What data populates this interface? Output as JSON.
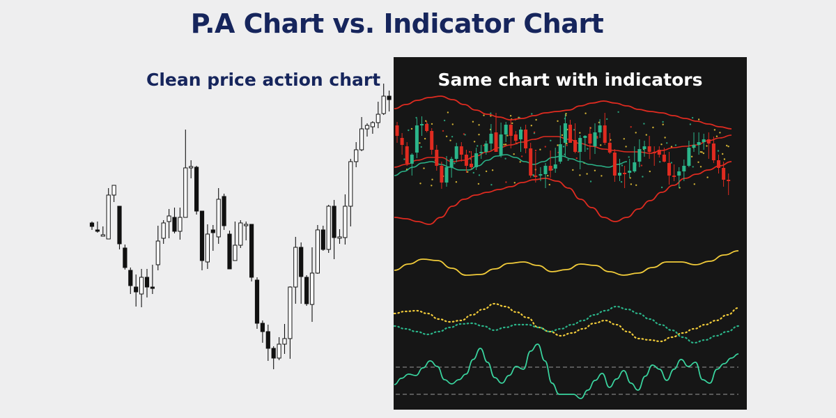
{
  "title": "P.A Chart vs. Indicator Chart",
  "left_panel": {
    "label": "Clean price action chart"
  },
  "right_panel": {
    "label": "Same chart with indicators"
  },
  "colors": {
    "background": "#eeeeef",
    "title": "#16255c",
    "dark_panel": "#161616",
    "bull_candle": "#2bb58a",
    "bear_candle": "#e02b20",
    "bollinger_band": "#e02b20",
    "moving_average": "#2bb58a",
    "indicator_line": "#f2cc3a",
    "dotted_yellow": "#f2cc3a",
    "dotted_green": "#2bb58a",
    "oscillator": "#3ad6a0",
    "dashed_level": "#bbbbbb"
  },
  "chart_data": {
    "type": "candlestick",
    "axes_visible": false,
    "price_ohlc": [
      [
        320,
        325,
        330,
        318
      ],
      [
        330,
        330,
        334,
        318
      ],
      [
        338,
        337,
        338,
        325
      ],
      [
        343,
        280,
        343,
        270
      ],
      [
        280,
        266,
        290,
        270
      ],
      [
        296,
        350,
        358,
        296
      ],
      [
        356,
        384,
        387,
        351
      ],
      [
        388,
        410,
        422,
        384
      ],
      [
        412,
        419,
        440,
        394
      ],
      [
        422,
        398,
        441,
        386
      ],
      [
        398,
        412,
        427,
        386
      ],
      [
        412,
        412,
        422,
        380
      ],
      [
        380,
        346,
        388,
        324
      ],
      [
        342,
        320,
        350,
        316
      ],
      [
        318,
        310,
        342,
        300
      ],
      [
        312,
        332,
        335,
        298
      ],
      [
        332,
        312,
        344,
        298
      ],
      [
        312,
        241,
        312,
        186
      ],
      [
        241,
        239,
        256,
        230
      ],
      [
        240,
        303,
        308,
        238
      ],
      [
        303,
        374,
        388,
        303
      ],
      [
        376,
        336,
        386,
        322
      ],
      [
        330,
        334,
        360,
        323
      ],
      [
        340,
        286,
        350,
        270
      ],
      [
        282,
        324,
        330,
        278
      ],
      [
        336,
        386,
        386,
        331
      ],
      [
        374,
        352,
        374,
        318
      ],
      [
        352,
        320,
        356,
        316
      ],
      [
        323,
        322,
        345,
        318
      ],
      [
        322,
        398,
        404,
        322
      ],
      [
        402,
        464,
        472,
        398
      ],
      [
        464,
        476,
        492,
        460
      ],
      [
        476,
        500,
        518,
        466
      ],
      [
        500,
        514,
        530,
        497
      ],
      [
        514,
        494,
        517,
        484
      ],
      [
        494,
        486,
        508,
        465
      ],
      [
        486,
        412,
        515,
        411
      ],
      [
        412,
        355,
        436,
        340
      ],
      [
        355,
        397,
        436,
        348
      ],
      [
        398,
        436,
        439,
        395
      ],
      [
        437,
        392,
        462,
        355
      ],
      [
        392,
        330,
        393,
        323
      ],
      [
        330,
        358,
        360,
        324
      ],
      [
        358,
        296,
        363,
        294
      ],
      [
        296,
        341,
        372,
        287
      ],
      [
        342,
        340,
        350,
        329
      ],
      [
        341,
        296,
        351,
        279
      ],
      [
        296,
        232,
        325,
        228
      ],
      [
        232,
        215,
        240,
        204
      ],
      [
        215,
        185,
        217,
        168
      ],
      [
        185,
        180,
        196,
        177
      ],
      [
        182,
        176,
        192,
        174
      ],
      [
        176,
        164,
        184,
        146
      ],
      [
        163,
        138,
        165,
        120
      ],
      [
        138,
        143,
        160,
        130
      ]
    ],
    "price_ohlc_continued": [
      [
        180,
        195,
        205,
        175
      ],
      [
        198,
        208,
        222,
        191
      ],
      [
        210,
        235,
        238,
        204
      ],
      [
        235,
        222,
        252,
        220
      ],
      [
        219,
        180,
        227,
        170
      ],
      [
        180,
        178,
        195,
        167
      ],
      [
        178,
        188,
        190,
        174
      ],
      [
        188,
        215,
        222,
        184
      ],
      [
        215,
        238,
        245,
        208
      ],
      [
        238,
        262,
        271,
        232
      ],
      [
        262,
        240,
        268,
        224
      ],
      [
        240,
        228,
        255,
        225
      ],
      [
        228,
        210,
        233,
        205
      ],
      [
        210,
        222,
        232,
        204
      ],
      [
        222,
        238,
        248,
        215
      ],
      [
        235,
        240,
        243,
        217
      ],
      [
        240,
        220,
        244,
        212
      ],
      [
        220,
        218,
        228,
        208
      ],
      [
        218,
        206,
        222,
        202
      ],
      [
        206,
        192,
        216,
        178
      ],
      [
        190,
        218,
        218,
        162
      ],
      [
        223,
        193,
        226,
        176
      ],
      [
        193,
        179,
        204,
        175
      ],
      [
        179,
        195,
        213,
        171
      ],
      [
        193,
        202,
        206,
        188
      ],
      [
        200,
        186,
        218,
        182
      ],
      [
        186,
        213,
        220,
        179
      ],
      [
        213,
        252,
        255,
        205
      ],
      [
        252,
        254,
        262,
        218
      ],
      [
        252,
        250,
        260,
        240
      ],
      [
        250,
        238,
        270,
        234
      ],
      [
        238,
        245,
        255,
        216
      ],
      [
        242,
        236,
        248,
        212
      ],
      [
        232,
        207,
        235,
        180
      ],
      [
        205,
        177,
        225,
        164
      ],
      [
        179,
        205,
        205,
        172
      ],
      [
        201,
        218,
        220,
        177
      ],
      [
        218,
        198,
        243,
        194
      ],
      [
        198,
        195,
        218,
        194
      ],
      [
        192,
        206,
        229,
        182
      ],
      [
        210,
        190,
        221,
        177
      ],
      [
        190,
        180,
        198,
        171
      ],
      [
        180,
        205,
        208,
        162
      ],
      [
        205,
        219,
        221,
        191
      ],
      [
        219,
        252,
        261,
        214
      ],
      [
        252,
        248,
        260,
        228
      ],
      [
        248,
        250,
        270,
        238
      ],
      [
        248,
        245,
        255,
        228
      ],
      [
        246,
        233,
        248,
        210
      ],
      [
        232,
        214,
        240,
        200
      ],
      [
        214,
        210,
        225,
        202
      ],
      [
        210,
        218,
        228,
        195
      ],
      [
        218,
        220,
        238,
        210
      ],
      [
        215,
        222,
        226,
        210
      ],
      [
        222,
        232,
        233,
        212
      ],
      [
        234,
        252,
        265,
        218
      ],
      [
        252,
        252,
        260,
        236
      ],
      [
        252,
        246,
        270,
        240
      ],
      [
        246,
        238,
        260,
        229
      ],
      [
        238,
        212,
        240,
        202
      ],
      [
        212,
        208,
        218,
        190
      ],
      [
        208,
        204,
        222,
        190
      ],
      [
        204,
        200,
        215,
        192
      ],
      [
        200,
        206,
        228,
        190
      ],
      [
        206,
        230,
        234,
        196
      ],
      [
        230,
        241,
        249,
        222
      ],
      [
        241,
        258,
        268,
        232
      ],
      [
        258,
        258,
        280,
        249
      ]
    ]
  },
  "indicator_data": {
    "bollinger_upper": [
      156,
      150,
      144,
      140,
      138,
      143,
      150,
      158,
      164,
      168,
      172,
      170,
      166,
      162,
      160,
      158,
      152,
      148,
      145,
      148,
      152,
      157,
      160,
      162,
      166,
      170,
      174,
      178,
      182,
      185
    ],
    "bollinger_middle": [
      240,
      236,
      230,
      226,
      226,
      232,
      230,
      224,
      218,
      212,
      208,
      204,
      200,
      196,
      196,
      200,
      206,
      210,
      214,
      216,
      218,
      218,
      220,
      216,
      212,
      210,
      208,
      202,
      198,
      194
    ],
    "bollinger_lower": [
      312,
      314,
      318,
      322,
      312,
      296,
      286,
      280,
      276,
      272,
      268,
      262,
      258,
      256,
      260,
      270,
      286,
      298,
      312,
      318,
      312,
      300,
      288,
      276,
      266,
      256,
      250,
      244,
      238,
      232
    ],
    "line_oscillator": [
      388,
      379,
      372,
      374,
      385,
      395,
      394,
      386,
      378,
      376,
      381,
      390,
      387,
      379,
      381,
      390,
      395,
      392,
      384,
      376,
      376,
      380,
      375,
      366,
      360
    ],
    "dotted_yellow": [
      450,
      447,
      446,
      450,
      458,
      462,
      460,
      452,
      444,
      436,
      440,
      448,
      456,
      470,
      476,
      482,
      478,
      472,
      464,
      460,
      466,
      476,
      486,
      488,
      490,
      484,
      478,
      472,
      466,
      460,
      452,
      442
    ],
    "dotted_green": [
      468,
      472,
      476,
      480,
      476,
      470,
      465,
      464,
      468,
      474,
      470,
      466,
      466,
      470,
      476,
      472,
      466,
      460,
      452,
      446,
      440,
      444,
      450,
      458,
      466,
      474,
      484,
      492,
      488,
      482,
      476,
      468
    ],
    "momentum_line": [
      552,
      543,
      537,
      539,
      528,
      518,
      526,
      545,
      551,
      545,
      537,
      516,
      500,
      520,
      542,
      550,
      539,
      526,
      530,
      504,
      494,
      518,
      550,
      566,
      566,
      566,
      572,
      560,
      546,
      536,
      556,
      544,
      532,
      550,
      560,
      540,
      524,
      530,
      546,
      530,
      516,
      526,
      520,
      545,
      550,
      530,
      522,
      514,
      508
    ],
    "momentum_levels": [
      527,
      566
    ]
  }
}
